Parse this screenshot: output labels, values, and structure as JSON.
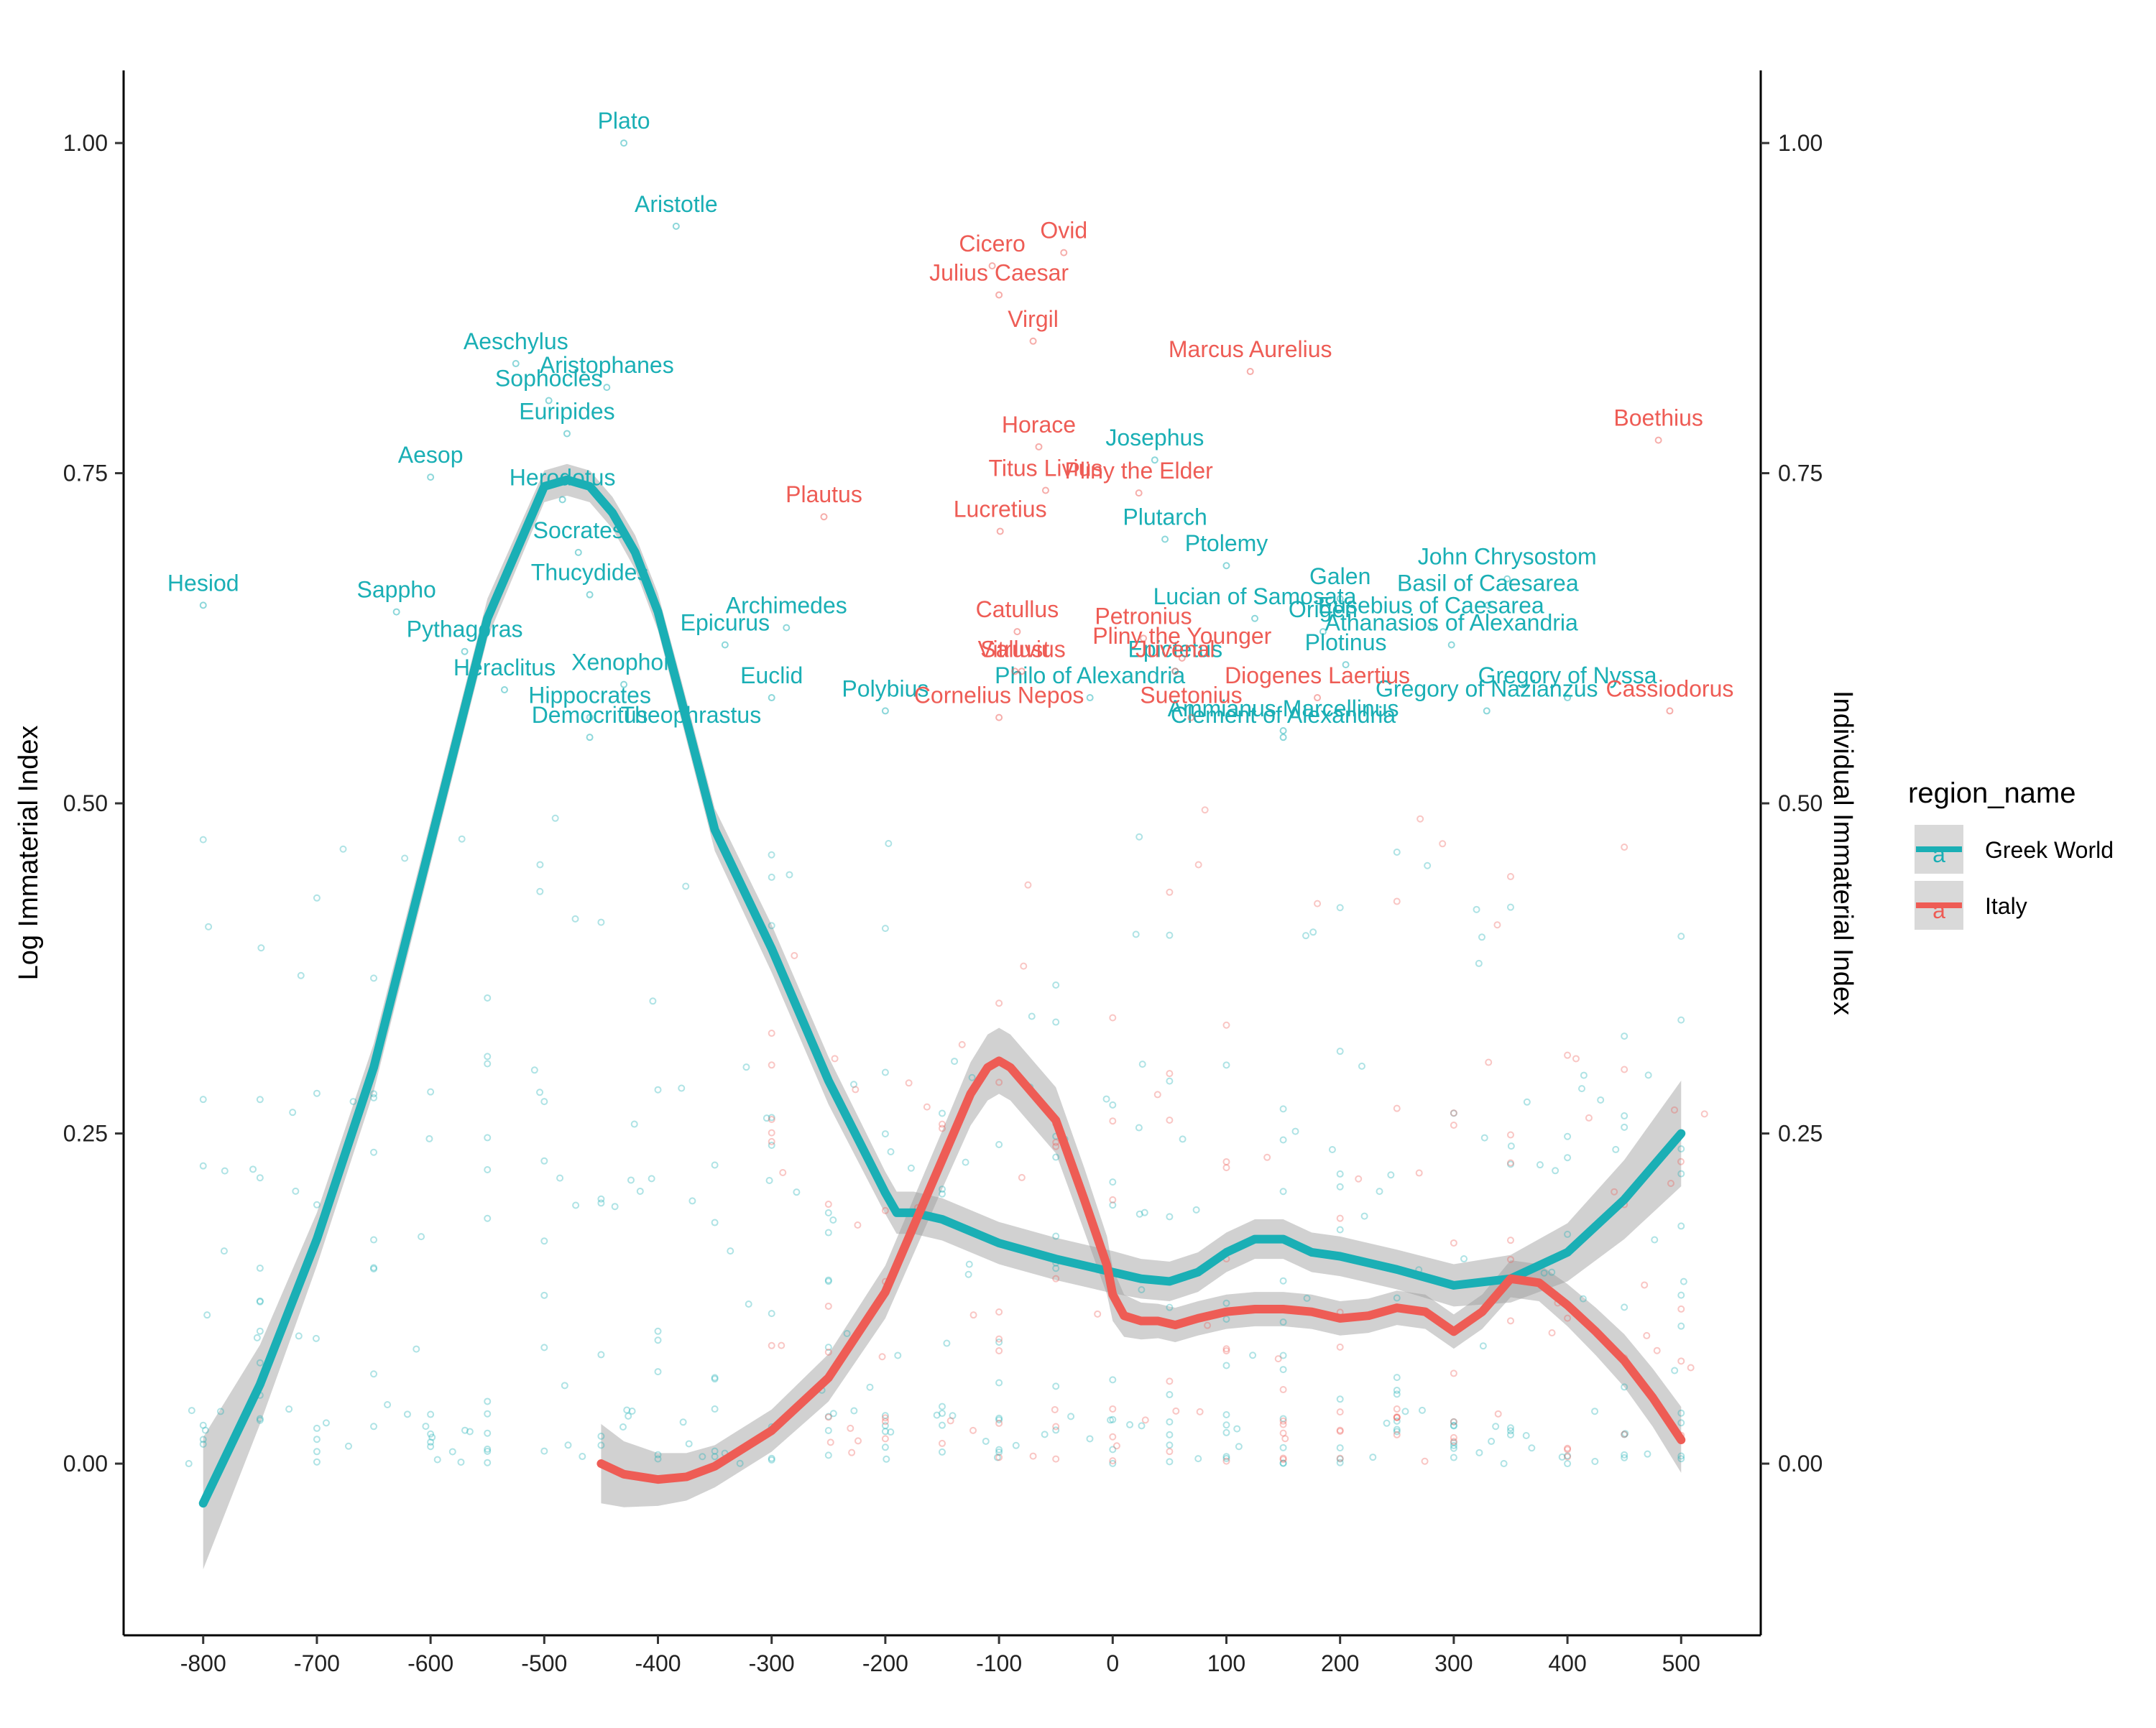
{
  "chart_data": {
    "type": "scatter",
    "title": "",
    "xlabel": "",
    "ylabel": "Log Immaterial Index",
    "ylabel_right": "Individual Immaterial Index",
    "xlim": [
      -870,
      570
    ],
    "ylim": [
      -0.13,
      1.055
    ],
    "x_ticks": [
      -800,
      -700,
      -600,
      -500,
      -400,
      -300,
      -200,
      -100,
      0,
      100,
      200,
      300,
      400,
      500
    ],
    "x_tick_labels": [
      "-800",
      "-700",
      "-600",
      "-500",
      "-400",
      "-300",
      "-200",
      "-100",
      "0",
      "100",
      "200",
      "300",
      "400",
      "500"
    ],
    "y_ticks": [
      0,
      0.25,
      0.5,
      0.75,
      1.0
    ],
    "y_tick_labels": [
      "0.00",
      "0.25",
      "0.50",
      "0.75",
      "1.00"
    ],
    "grid": false,
    "legend_position": "right",
    "legend": {
      "title": "region_name",
      "entries": [
        {
          "name": "Greek World",
          "color": "#1AAFB5"
        },
        {
          "name": "Italy",
          "color": "#EE5C55"
        }
      ],
      "key_glyph": "a"
    },
    "series": [
      {
        "name": "Greek World",
        "color": "#1AAFB5",
        "smooth": {
          "x": [
            -800,
            -750,
            -700,
            -650,
            -600,
            -550,
            -500,
            -480,
            -460,
            -440,
            -420,
            -400,
            -380,
            -350,
            -300,
            -250,
            -200,
            -190,
            -175,
            -150,
            -100,
            -50,
            0,
            25,
            50,
            75,
            100,
            125,
            150,
            175,
            200,
            250,
            300,
            350,
            400,
            450,
            500
          ],
          "y": [
            -0.03,
            0.06,
            0.17,
            0.3,
            0.47,
            0.64,
            0.74,
            0.745,
            0.74,
            0.72,
            0.69,
            0.645,
            0.58,
            0.48,
            0.39,
            0.29,
            0.205,
            0.19,
            0.19,
            0.185,
            0.167,
            0.155,
            0.145,
            0.14,
            0.138,
            0.145,
            0.16,
            0.17,
            0.17,
            0.16,
            0.157,
            0.147,
            0.135,
            0.14,
            0.16,
            0.2,
            0.25
          ],
          "band": [
            0.05,
            0.03,
            0.02,
            0.018,
            0.016,
            0.015,
            0.012,
            0.012,
            0.012,
            0.012,
            0.013,
            0.014,
            0.015,
            0.016,
            0.018,
            0.018,
            0.016,
            0.016,
            0.016,
            0.016,
            0.016,
            0.016,
            0.016,
            0.015,
            0.015,
            0.015,
            0.015,
            0.015,
            0.015,
            0.015,
            0.015,
            0.015,
            0.016,
            0.018,
            0.022,
            0.03,
            0.04
          ]
        },
        "labels": [
          {
            "name": "Plato",
            "x": -430,
            "y": 1.0
          },
          {
            "name": "Aristotle",
            "x": -384,
            "y": 0.937
          },
          {
            "name": "Aeschylus",
            "x": -525,
            "y": 0.833
          },
          {
            "name": "Aristophanes",
            "x": -445,
            "y": 0.815
          },
          {
            "name": "Sophocles",
            "x": -496,
            "y": 0.805
          },
          {
            "name": "Aesop",
            "x": -600,
            "y": 0.747
          },
          {
            "name": "Euripides",
            "x": -480,
            "y": 0.78
          },
          {
            "name": "Herodotus",
            "x": -484,
            "y": 0.73
          },
          {
            "name": "Socrates",
            "x": -470,
            "y": 0.69
          },
          {
            "name": "Hesiod",
            "x": -800,
            "y": 0.65
          },
          {
            "name": "Sappho",
            "x": -630,
            "y": 0.645
          },
          {
            "name": "Thucydides",
            "x": -460,
            "y": 0.658
          },
          {
            "name": "Epicurus",
            "x": -341,
            "y": 0.62
          },
          {
            "name": "Archimedes",
            "x": -287,
            "y": 0.633
          },
          {
            "name": "Pythagoras",
            "x": -570,
            "y": 0.615
          },
          {
            "name": "Xenophon",
            "x": -430,
            "y": 0.59
          },
          {
            "name": "Heraclitus",
            "x": -535,
            "y": 0.586
          },
          {
            "name": "Euclid",
            "x": -300,
            "y": 0.58
          },
          {
            "name": "Polybius",
            "x": -200,
            "y": 0.57
          },
          {
            "name": "Hippocrates",
            "x": -460,
            "y": 0.565
          },
          {
            "name": "Theophrastus",
            "x": -371,
            "y": 0.55
          },
          {
            "name": "Democritus",
            "x": -460,
            "y": 0.55
          },
          {
            "name": "Josephus",
            "x": 37,
            "y": 0.76
          },
          {
            "name": "Plutarch",
            "x": 46,
            "y": 0.7
          },
          {
            "name": "Galen",
            "x": 200,
            "y": 0.655
          },
          {
            "name": "Ptolemy",
            "x": 100,
            "y": 0.68
          },
          {
            "name": "Eusebius of Caesarea",
            "x": 280,
            "y": 0.633
          },
          {
            "name": "John Chrysostom",
            "x": 347,
            "y": 0.67
          },
          {
            "name": "Basil of Caesarea",
            "x": 330,
            "y": 0.65
          },
          {
            "name": "Athanasios of Alexandria",
            "x": 298,
            "y": 0.62
          },
          {
            "name": "Lucian of Samosata",
            "x": 125,
            "y": 0.64
          },
          {
            "name": "Origen",
            "x": 185,
            "y": 0.63
          },
          {
            "name": "Plotinus",
            "x": 205,
            "y": 0.605
          },
          {
            "name": "Gregory of Nyssa",
            "x": 400,
            "y": 0.58
          },
          {
            "name": "Epictetus",
            "x": 55,
            "y": 0.6
          },
          {
            "name": "Gregory of Nazianzus",
            "x": 329,
            "y": 0.57
          },
          {
            "name": "Philo of Alexandria",
            "x": -20,
            "y": 0.58
          },
          {
            "name": "Ammianus Marcellinus",
            "x": 150,
            "y": 0.555
          },
          {
            "name": "Clement of Alexandria",
            "x": 150,
            "y": 0.55
          }
        ]
      },
      {
        "name": "Italy",
        "color": "#EE5C55",
        "smooth": {
          "x": [
            -450,
            -430,
            -400,
            -375,
            -350,
            -300,
            -250,
            -200,
            -175,
            -150,
            -125,
            -110,
            -100,
            -90,
            -75,
            -50,
            -25,
            -5,
            0,
            10,
            25,
            40,
            55,
            75,
            100,
            125,
            150,
            175,
            200,
            225,
            250,
            275,
            300,
            325,
            350,
            375,
            400,
            425,
            450,
            475,
            500
          ],
          "y": [
            0.0,
            -0.008,
            -0.012,
            -0.01,
            -0.002,
            0.025,
            0.065,
            0.13,
            0.18,
            0.23,
            0.28,
            0.3,
            0.305,
            0.3,
            0.285,
            0.26,
            0.2,
            0.15,
            0.128,
            0.112,
            0.108,
            0.108,
            0.105,
            0.11,
            0.115,
            0.117,
            0.117,
            0.115,
            0.11,
            0.112,
            0.118,
            0.115,
            0.1,
            0.115,
            0.14,
            0.137,
            0.12,
            0.1,
            0.078,
            0.05,
            0.018
          ],
          "band": [
            0.03,
            0.025,
            0.02,
            0.018,
            0.016,
            0.016,
            0.018,
            0.02,
            0.021,
            0.022,
            0.024,
            0.025,
            0.025,
            0.025,
            0.025,
            0.025,
            0.024,
            0.022,
            0.02,
            0.016,
            0.014,
            0.013,
            0.013,
            0.013,
            0.013,
            0.013,
            0.013,
            0.013,
            0.013,
            0.013,
            0.013,
            0.013,
            0.013,
            0.013,
            0.014,
            0.014,
            0.016,
            0.018,
            0.02,
            0.022,
            0.025
          ]
        },
        "labels": [
          {
            "name": "Ovid",
            "x": -43,
            "y": 0.917
          },
          {
            "name": "Cicero",
            "x": -106,
            "y": 0.907
          },
          {
            "name": "Julius Caesar",
            "x": -100,
            "y": 0.885
          },
          {
            "name": "Virgil",
            "x": -70,
            "y": 0.85
          },
          {
            "name": "Marcus Aurelius",
            "x": 121,
            "y": 0.827
          },
          {
            "name": "Horace",
            "x": -65,
            "y": 0.77
          },
          {
            "name": "Boethius",
            "x": 480,
            "y": 0.775
          },
          {
            "name": "Pliny the Elder",
            "x": 23,
            "y": 0.735
          },
          {
            "name": "Titus Livius",
            "x": -59,
            "y": 0.737
          },
          {
            "name": "Plautus",
            "x": -254,
            "y": 0.717
          },
          {
            "name": "Lucretius",
            "x": -99,
            "y": 0.706
          },
          {
            "name": "Petronius",
            "x": 27,
            "y": 0.625
          },
          {
            "name": "Catullus",
            "x": -84,
            "y": 0.63
          },
          {
            "name": "Vitruvius",
            "x": -80,
            "y": 0.6
          },
          {
            "name": "Pliny the Younger",
            "x": 61,
            "y": 0.61
          },
          {
            "name": "Diogenes Laertius",
            "x": 180,
            "y": 0.58
          },
          {
            "name": "Sallust",
            "x": -86,
            "y": 0.6
          },
          {
            "name": "Cornelius Nepos",
            "x": -100,
            "y": 0.565
          },
          {
            "name": "Suetonius",
            "x": 69,
            "y": 0.565
          },
          {
            "name": "Cassiodorus",
            "x": 490,
            "y": 0.57
          },
          {
            "name": "Juvenal",
            "x": 55,
            "y": 0.6
          }
        ]
      }
    ],
    "background_points": "Many small translucent points (both regions) cluster near 0.00-0.35 for every century, with scattered points up to ~0.5."
  }
}
